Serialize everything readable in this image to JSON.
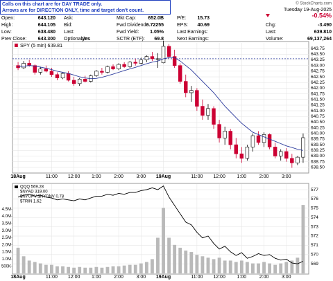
{
  "header": {
    "notice": [
      "Calls on this chart are for DAY TRADE only.",
      "Arrows are for DIRECTION ONLY, time and target don't count."
    ],
    "quote": [
      [
        {
          "label": "Open:",
          "value": "643.120"
        },
        {
          "label": "High:",
          "value": "644.105"
        },
        {
          "label": "Low:",
          "value": "638.480"
        },
        {
          "label": "Prev Close:",
          "value": "643.300"
        }
      ],
      [
        {
          "label": "Ask:"
        },
        {
          "label": "Bid:"
        },
        {
          "label": "Last:"
        },
        {
          "label": "Optionable:",
          "value": "yes"
        }
      ],
      [
        {
          "label": "Mkt Cap:",
          "value": "652.0B"
        },
        {
          "label": "Fwd Dividend:",
          "value": "6.72255"
        },
        {
          "label": "Fwd Yield:",
          "value": "1.05%"
        },
        {
          "label": "SCTR (ETF):",
          "value": "69.8"
        }
      ],
      [
        {
          "label": "P/E:",
          "value": "15.73"
        },
        {
          "label": "EPS:",
          "value": "40.69"
        },
        {
          "label": "Last Earnings:"
        },
        {
          "label": "Next Earnings:"
        }
      ]
    ],
    "brand": "© StockCharts.com",
    "date": "Tuesday  19-Aug-2025",
    "change_pct": "-0.54%",
    "stats": [
      {
        "label": "Chg:",
        "value": "-3.490"
      },
      {
        "label": "Last:",
        "value": "639.810"
      },
      {
        "label": "Volume:",
        "value": "69,137,264"
      }
    ]
  },
  "chart_data": [
    {
      "type": "candlestick",
      "title": "SPY (5 min) 639.81",
      "open": [
        643.0,
        642.9,
        643.1,
        643.0,
        642.7,
        642.85,
        642.75,
        642.6,
        642.45,
        642.65,
        642.35,
        642.2,
        642.4,
        642.3,
        642.55,
        642.75,
        642.7,
        642.95,
        642.85,
        643.05,
        642.95,
        643.15,
        643.1,
        643.25,
        643.4,
        643.3,
        643.12,
        643.85,
        643.4,
        643.0,
        642.3,
        641.8,
        641.9,
        641.2,
        640.8,
        641.1,
        640.4,
        639.8,
        640.1,
        639.5,
        639.1,
        638.9,
        639.4,
        639.9,
        639.6,
        639.95,
        639.4,
        639.0,
        639.2,
        638.9,
        638.7,
        638.95
      ],
      "high": [
        643.15,
        643.2,
        643.25,
        643.05,
        642.95,
        643.0,
        642.9,
        642.7,
        642.7,
        642.75,
        642.5,
        642.45,
        642.55,
        642.6,
        642.8,
        642.9,
        643.0,
        643.05,
        643.1,
        643.15,
        643.2,
        643.3,
        643.35,
        643.45,
        643.6,
        643.55,
        644.1,
        643.95,
        643.7,
        643.1,
        642.6,
        642.1,
        642.0,
        641.5,
        641.3,
        641.2,
        640.6,
        640.3,
        640.2,
        639.8,
        639.4,
        639.5,
        640.0,
        640.1,
        640.05,
        640.0,
        639.6,
        639.3,
        639.35,
        639.1,
        639.0,
        640.0
      ],
      "low": [
        642.8,
        642.85,
        642.95,
        642.6,
        642.6,
        642.7,
        642.5,
        642.35,
        642.4,
        642.3,
        642.1,
        642.1,
        642.25,
        642.25,
        642.5,
        642.6,
        642.65,
        642.8,
        642.8,
        642.9,
        642.9,
        643.0,
        643.05,
        643.15,
        643.2,
        642.9,
        643.1,
        643.3,
        642.9,
        642.2,
        641.6,
        641.4,
        641.0,
        640.6,
        640.6,
        640.2,
        639.6,
        639.5,
        639.3,
        638.9,
        638.7,
        638.8,
        639.2,
        639.5,
        639.4,
        639.3,
        638.9,
        638.8,
        638.75,
        638.48,
        638.6,
        638.7
      ],
      "close": [
        642.9,
        643.1,
        643.0,
        642.7,
        642.85,
        642.75,
        642.6,
        642.45,
        642.65,
        642.35,
        642.2,
        642.4,
        642.3,
        642.55,
        642.75,
        642.7,
        642.95,
        642.85,
        643.05,
        642.95,
        643.15,
        643.1,
        643.25,
        643.4,
        643.3,
        643.3,
        643.85,
        643.4,
        643.0,
        642.3,
        641.8,
        641.9,
        641.2,
        640.8,
        641.1,
        640.4,
        639.8,
        640.1,
        639.5,
        639.1,
        638.9,
        639.4,
        639.9,
        639.6,
        639.95,
        639.4,
        639.0,
        639.2,
        638.9,
        638.7,
        638.95,
        639.81
      ],
      "ma": [
        642.95,
        642.97,
        643.0,
        642.98,
        642.93,
        642.88,
        642.82,
        642.75,
        642.7,
        642.65,
        642.58,
        642.5,
        642.45,
        642.42,
        642.43,
        642.48,
        642.55,
        642.62,
        642.7,
        642.78,
        642.85,
        642.92,
        643.0,
        643.08,
        643.15,
        643.2,
        643.3,
        643.35,
        643.35,
        643.2,
        643.0,
        642.8,
        642.55,
        642.3,
        642.05,
        641.8,
        641.5,
        641.2,
        640.95,
        640.7,
        640.45,
        640.25,
        640.05,
        639.95,
        639.85,
        639.75,
        639.65,
        639.55,
        639.45,
        639.38,
        639.3,
        639.25
      ],
      "ma_color": "#2b3a9c",
      "up_color": "#ffffff",
      "down_color": "#cc0033",
      "prev_close_line": 643.3,
      "xlim": [
        -1,
        52
      ],
      "xticks": [
        {
          "value": 0,
          "label": "18Aug"
        },
        {
          "value": 6,
          "label": "11:00"
        },
        {
          "value": 10,
          "label": "12:00"
        },
        {
          "value": 14,
          "label": "1:00"
        },
        {
          "value": 18,
          "label": "2:00"
        },
        {
          "value": 22,
          "label": "3:00"
        },
        {
          "value": 26,
          "label": "19Aug"
        },
        {
          "value": 32,
          "label": "11:00"
        },
        {
          "value": 36,
          "label": "12:00"
        },
        {
          "value": 40,
          "label": "1:00"
        },
        {
          "value": 44,
          "label": "2:00"
        },
        {
          "value": 48,
          "label": "3:00"
        }
      ],
      "ylim": [
        638.25,
        644.0
      ],
      "yticks": [
        {
          "value": 643.75,
          "label": "643.75"
        },
        {
          "value": 643.5,
          "label": "643.50"
        },
        {
          "value": 643.25,
          "label": "643.25"
        },
        {
          "value": 643,
          "label": "643.00"
        },
        {
          "value": 642.75,
          "label": "642.75"
        },
        {
          "value": 642.5,
          "label": "642.50"
        },
        {
          "value": 642.25,
          "label": "642.25"
        },
        {
          "value": 642,
          "label": "642.00"
        },
        {
          "value": 641.75,
          "label": "641.75"
        },
        {
          "value": 641.5,
          "label": "641.50"
        },
        {
          "value": 641.25,
          "label": "641.25"
        },
        {
          "value": 641,
          "label": "641.00"
        },
        {
          "value": 640.75,
          "label": "640.75"
        },
        {
          "value": 640.5,
          "label": "640.50"
        },
        {
          "value": 640.25,
          "label": "640.25"
        },
        {
          "value": 640,
          "label": "640.00"
        },
        {
          "value": 639.75,
          "label": "639.75"
        },
        {
          "value": 639.5,
          "label": "639.50"
        },
        {
          "value": 639.25,
          "label": "639.25"
        },
        {
          "value": 639,
          "label": "639.00"
        },
        {
          "value": 638.75,
          "label": "638.75"
        },
        {
          "value": 638.5,
          "label": "638.50"
        }
      ],
      "grid": true
    },
    {
      "type": "line",
      "series": [
        {
          "name": "QQQ 569.28",
          "color": "#000000",
          "values": [
            576.2,
            576.4,
            576.5,
            576.3,
            576.4,
            576.2,
            576.1,
            575.9,
            576.0,
            575.9,
            575.8,
            576.0,
            575.9,
            576.1,
            576.3,
            576.3,
            576.5,
            576.4,
            576.6,
            576.5,
            576.7,
            576.7,
            576.9,
            577.0,
            577.2,
            577.0,
            577.4,
            576.2,
            575.3,
            574.4,
            573.5,
            573.2,
            572.4,
            571.8,
            572.0,
            571.2,
            570.6,
            570.9,
            570.3,
            569.9,
            570.2,
            569.6,
            569.8,
            570.1,
            569.9,
            570.0,
            569.6,
            569.4,
            569.5,
            569.1,
            569.0,
            569.28
          ]
        }
      ],
      "indicators": [
        "$NYAD 319.00",
        "$NYUPV:$NYDNV 0.78",
        "$TRIN 1.62"
      ],
      "volume": [
        1800000,
        1200000,
        900000,
        800000,
        700000,
        600000,
        600000,
        500000,
        500000,
        450000,
        400000,
        450000,
        400000,
        400000,
        450000,
        400000,
        450000,
        500000,
        500000,
        550000,
        600000,
        600000,
        700000,
        800000,
        1000000,
        2500000,
        4600000,
        2500000,
        2000000,
        1800000,
        1600000,
        1500000,
        1300000,
        1200000,
        1100000,
        1000000,
        1100000,
        900000,
        900000,
        800000,
        900000,
        800000,
        700000,
        700000,
        800000,
        700000,
        600000,
        700000,
        800000,
        900000,
        1100000,
        4800000
      ],
      "volume_color": "#b9b9b9",
      "xlim": [
        -1,
        52
      ],
      "xticks": [
        {
          "value": 0,
          "label": "18Aug"
        },
        {
          "value": 6,
          "label": "11:00"
        },
        {
          "value": 10,
          "label": "12:00"
        },
        {
          "value": 14,
          "label": "1:00"
        },
        {
          "value": 18,
          "label": "2:00"
        },
        {
          "value": 22,
          "label": "3:00"
        },
        {
          "value": 26,
          "label": "19Aug"
        },
        {
          "value": 32,
          "label": "11:00"
        },
        {
          "value": 36,
          "label": "12:00"
        },
        {
          "value": 40,
          "label": "1:00"
        },
        {
          "value": 44,
          "label": "2:00"
        },
        {
          "value": 48,
          "label": "3:00"
        }
      ],
      "ylim": [
        567.97,
        577.6
      ],
      "yticks": [
        569,
        570,
        571,
        572,
        573,
        574,
        575,
        576,
        577
      ],
      "vlim": [
        0,
        5000000
      ],
      "vticks": [
        {
          "value": 500000,
          "label": "500K"
        },
        {
          "value": 1000000,
          "label": "1.0M"
        },
        {
          "value": 1500000,
          "label": "1.5M"
        },
        {
          "value": 2000000,
          "label": "2.0M"
        },
        {
          "value": 2500000,
          "label": "2.5M"
        },
        {
          "value": 3000000,
          "label": "3.0M"
        },
        {
          "value": 3500000,
          "label": "3.5M"
        },
        {
          "value": 4000000,
          "label": "4.0M"
        },
        {
          "value": 4500000,
          "label": "4.5M"
        }
      ],
      "grid": true
    }
  ]
}
